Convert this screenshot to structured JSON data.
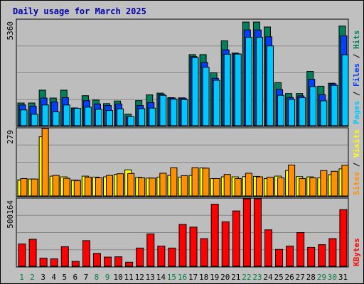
{
  "title": "Daily usage for March 2025",
  "colors": {
    "frame_bg": "#c0c0c0",
    "plot_bg": "#bdbdbd",
    "title": "#0000aa",
    "hits": "#00805c",
    "files": "#0040ff",
    "pages": "#00c8ff",
    "visits": "#ffff00",
    "sites": "#ff9000",
    "kbytes": "#ff0000",
    "weekday_label": "#000000",
    "weekend_label": "#008040"
  },
  "panels": {
    "top": {
      "ymax_label": "5360",
      "legend": {
        "pages": "Pages",
        "files": "Files",
        "hits": "Hits",
        "sep": " / "
      }
    },
    "mid": {
      "ymax_label": "279",
      "legend": {
        "sites": "Sites",
        "visits": "Visits",
        "sep": " / "
      }
    },
    "bottom": {
      "ymax_label": "500164",
      "legend": {
        "kbytes": "KBytes"
      }
    }
  },
  "chart_data": {
    "type": "bar",
    "title": "Daily usage for March 2025",
    "categories": [
      "1",
      "2",
      "3",
      "4",
      "5",
      "6",
      "7",
      "8",
      "9",
      "10",
      "11",
      "12",
      "13",
      "14",
      "15",
      "16",
      "17",
      "18",
      "19",
      "20",
      "21",
      "22",
      "23",
      "24",
      "25",
      "26",
      "27",
      "28",
      "29",
      "30",
      "31"
    ],
    "weekend_days": [
      "1",
      "2",
      "8",
      "9",
      "15",
      "16",
      "22",
      "23",
      "29",
      "30"
    ],
    "panels": [
      {
        "name": "hits-files-pages",
        "ymax": 5360,
        "series": [
          {
            "name": "Hits",
            "values": [
              1150,
              1150,
              1800,
              1400,
              1800,
              900,
              1520,
              1300,
              1120,
              1250,
              580,
              1270,
              1560,
              1650,
              1420,
              1410,
              3600,
              3600,
              2680,
              4300,
              3680,
              5250,
              5250,
              5000,
              2180,
              1630,
              1630,
              2750,
              2000,
              2150,
              5050
            ]
          },
          {
            "name": "Files",
            "values": [
              1050,
              990,
              1400,
              1200,
              1420,
              860,
              1270,
              1100,
              1020,
              1100,
              450,
              1020,
              1170,
              1580,
              1400,
              1390,
              3500,
              3200,
              2400,
              3840,
              3640,
              4850,
              4850,
              4500,
              1830,
              1430,
              1510,
              2350,
              1570,
              2120,
              4550
            ]
          },
          {
            "name": "Pages",
            "values": [
              800,
              580,
              1050,
              700,
              1050,
              880,
              940,
              830,
              770,
              850,
              460,
              860,
              890,
              1540,
              1340,
              1320,
              3450,
              2960,
              2300,
              3620,
              3630,
              4480,
              4480,
              4040,
              1540,
              1330,
              1420,
              1980,
              1260,
              2040,
              3590
            ]
          }
        ]
      },
      {
        "name": "visits-sites",
        "ymax": 279,
        "series": [
          {
            "name": "Visits",
            "values": [
              65,
              70,
              245,
              82,
              79,
              64,
              82,
              78,
              79,
              89,
              108,
              77,
              74,
              78,
              85,
              78,
              85,
              116,
              72,
              79,
              79,
              80,
              81,
              72,
              82,
              105,
              80,
              79,
              75,
              88,
              112
            ]
          },
          {
            "name": "Sites",
            "values": [
              72,
              70,
              279,
              85,
              73,
              63,
              78,
              75,
              85,
              92,
              93,
              75,
              74,
              94,
              117,
              84,
              117,
              115,
              72,
              89,
              72,
              94,
              79,
              78,
              75,
              128,
              72,
              75,
              105,
              102,
              127
            ]
          }
        ]
      },
      {
        "name": "kbytes",
        "ymax": 500164,
        "series": [
          {
            "name": "KBytes",
            "values": [
              165000,
              200000,
              60000,
              55000,
              145000,
              36000,
              190000,
              95000,
              68000,
              70000,
              30000,
              135000,
              240000,
              150000,
              135000,
              310000,
              290000,
              205000,
              460000,
              330000,
              410000,
              500164,
              500164,
              270000,
              125000,
              150000,
              250000,
              140000,
              160000,
              205000,
              420000
            ]
          }
        ]
      }
    ]
  }
}
